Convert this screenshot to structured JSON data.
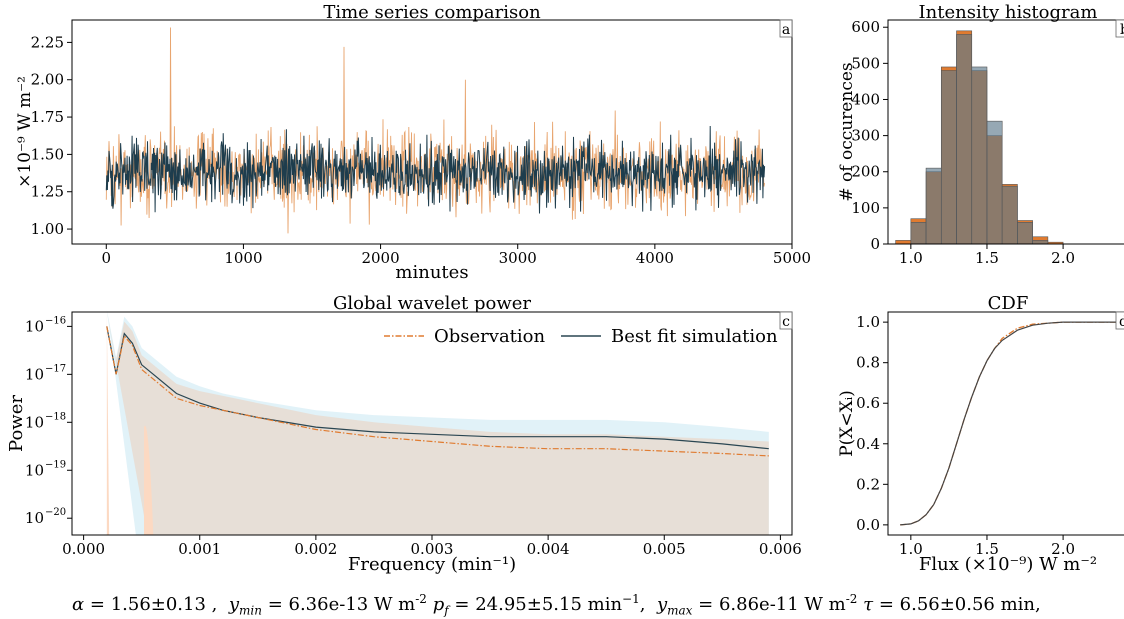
{
  "caption": {
    "alpha_label": "α",
    "alpha_value": "= 1.56±0.13 ,",
    "ymin_label": "y",
    "ymin_sub": "min",
    "ymin_value": "= 6.36e-13 W m",
    "ymin_exp": "-2",
    "pf_label": "p",
    "pf_sub": "f",
    "pf_value": "= 24.95±5.15 min",
    "pf_exp": "−1",
    "pf_sep": ",",
    "ymax_label": "y",
    "ymax_sub": "max",
    "ymax_value": "= 6.86e-11 W m",
    "ymax_exp": "-2",
    "tau_label": "τ",
    "tau_value": "= 6.56±0.56 min,"
  },
  "colors": {
    "observation": "#e8a56f",
    "simulation": "#1e3d4d",
    "obs_hist": "#e07b30",
    "sim_hist": "#5e7a8c",
    "obs_band": "#fcd9c2",
    "sim_band": "#cde9f4"
  },
  "chart_data": [
    {
      "type": "line",
      "title": "Time series comparison",
      "panel_letter": "a",
      "xlabel": "minutes",
      "ylabel": "×10⁻⁹ W m⁻²",
      "xlim": [
        -250,
        5000
      ],
      "ylim": [
        0.9,
        2.4
      ],
      "xticks": [
        "0",
        "1000",
        "2000",
        "3000",
        "4000",
        "5000"
      ],
      "xtick_values": [
        0,
        1000,
        2000,
        3000,
        4000,
        5000
      ],
      "yticks": [
        "1.00",
        "1.25",
        "1.50",
        "1.75",
        "2.00",
        "2.25"
      ],
      "ytick_values": [
        1.0,
        1.25,
        1.5,
        1.75,
        2.0,
        2.25
      ],
      "series": [
        {
          "role": "observation",
          "x_range": [
            0,
            4800
          ],
          "mean": 1.38,
          "min": 0.93,
          "max": 2.35
        },
        {
          "role": "simulation",
          "x_range": [
            0,
            4800
          ],
          "mean": 1.38,
          "min": 0.98,
          "max": 1.85
        }
      ]
    },
    {
      "type": "bar",
      "title": "Intensity histogram",
      "panel_letter": "b",
      "ylabel": "# of occurences",
      "xlim": [
        0.85,
        2.4
      ],
      "ylim": [
        0,
        620
      ],
      "xticks": [
        "1.0",
        "1.5",
        "2.0"
      ],
      "xtick_values": [
        1.0,
        1.5,
        2.0
      ],
      "yticks": [
        "0",
        "100",
        "200",
        "300",
        "400",
        "500",
        "600"
      ],
      "ytick_values": [
        0,
        100,
        200,
        300,
        400,
        500,
        600
      ],
      "bin_edges": [
        0.9,
        1.0,
        1.1,
        1.2,
        1.3,
        1.4,
        1.5,
        1.6,
        1.7,
        1.8,
        1.9,
        2.0,
        2.1
      ],
      "series": [
        {
          "role": "observation",
          "values": [
            10,
            70,
            200,
            490,
            590,
            480,
            300,
            165,
            65,
            20,
            5,
            0
          ]
        },
        {
          "role": "simulation",
          "values": [
            0,
            60,
            210,
            480,
            580,
            490,
            340,
            160,
            60,
            10,
            0,
            0
          ]
        }
      ]
    },
    {
      "type": "line",
      "title": "Global wavelet power",
      "panel_letter": "c",
      "xlabel": "Frequency (min⁻¹)",
      "ylabel": "Power",
      "yscale": "log",
      "xlim": [
        -0.0001,
        0.0061
      ],
      "ylim_log10": [
        -20.35,
        -15.7
      ],
      "xticks": [
        "0.000",
        "0.001",
        "0.002",
        "0.003",
        "0.004",
        "0.005",
        "0.006"
      ],
      "xtick_values": [
        0,
        0.001,
        0.002,
        0.003,
        0.004,
        0.005,
        0.006
      ],
      "yticks": [
        "10",
        "10",
        "10",
        "10",
        "10"
      ],
      "ytick_exps": [
        "−16",
        "−17",
        "−18",
        "−19",
        "−20"
      ],
      "ytick_log10": [
        -16,
        -17,
        -18,
        -19,
        -20
      ],
      "legend": [
        "Observation",
        "Best fit simulation"
      ],
      "x": [
        0.0002,
        0.00028,
        0.00035,
        0.00042,
        0.0005,
        0.0006,
        0.0008,
        0.001,
        0.0012,
        0.0015,
        0.002,
        0.0025,
        0.003,
        0.0035,
        0.004,
        0.0045,
        0.005,
        0.0055,
        0.0059
      ],
      "series": [
        {
          "name": "Observation",
          "log10": [
            -16.0,
            -17.0,
            -16.2,
            -16.4,
            -16.9,
            -17.1,
            -17.5,
            -17.65,
            -17.75,
            -17.9,
            -18.15,
            -18.3,
            -18.4,
            -18.5,
            -18.55,
            -18.55,
            -18.6,
            -18.65,
            -18.7
          ]
        },
        {
          "name": "Best fit simulation",
          "log10": [
            -16.0,
            -17.0,
            -16.15,
            -16.35,
            -16.8,
            -17.0,
            -17.4,
            -17.6,
            -17.75,
            -17.9,
            -18.1,
            -18.2,
            -18.25,
            -18.3,
            -18.3,
            -18.3,
            -18.35,
            -18.45,
            -18.55
          ]
        }
      ]
    },
    {
      "type": "line",
      "title": "CDF",
      "panel_letter": "d",
      "xlabel": "Flux (×10⁻⁹) W m⁻²",
      "ylabel": "P(X<Xᵢ)",
      "xlim": [
        0.85,
        2.4
      ],
      "ylim": [
        -0.05,
        1.05
      ],
      "xticks": [
        "1.0",
        "1.5",
        "2.0"
      ],
      "xtick_values": [
        1.0,
        1.5,
        2.0
      ],
      "yticks": [
        "0.0",
        "0.2",
        "0.4",
        "0.6",
        "0.8",
        "1.0"
      ],
      "ytick_values": [
        0,
        0.2,
        0.4,
        0.6,
        0.8,
        1.0
      ],
      "x": [
        0.93,
        1.0,
        1.05,
        1.1,
        1.15,
        1.2,
        1.25,
        1.3,
        1.35,
        1.4,
        1.45,
        1.5,
        1.55,
        1.6,
        1.7,
        1.8,
        1.9,
        2.0,
        2.1,
        2.4
      ],
      "series": [
        {
          "role": "observation",
          "values": [
            0.0,
            0.005,
            0.02,
            0.05,
            0.1,
            0.18,
            0.28,
            0.4,
            0.52,
            0.63,
            0.73,
            0.81,
            0.87,
            0.92,
            0.97,
            0.99,
            0.995,
            1.0,
            1.0,
            1.0
          ]
        },
        {
          "role": "simulation",
          "values": [
            0.0,
            0.005,
            0.02,
            0.05,
            0.1,
            0.18,
            0.28,
            0.4,
            0.52,
            0.63,
            0.73,
            0.81,
            0.87,
            0.91,
            0.96,
            0.985,
            0.995,
            1.0,
            1.0,
            1.0
          ]
        }
      ]
    }
  ]
}
